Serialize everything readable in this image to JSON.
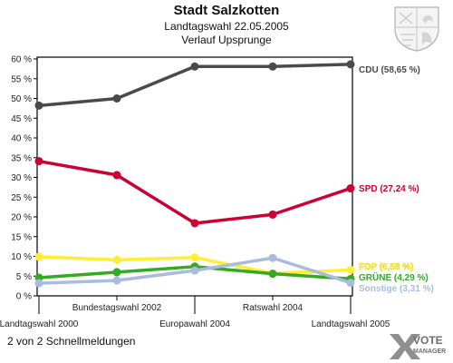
{
  "header": {
    "title": "Stadt Salzkotten",
    "subtitle": "Landtagswahl 22.05.2005",
    "subtitle2": "Verlauf Upsprunge"
  },
  "footer": {
    "text": "2 von 2 Schnellmeldungen"
  },
  "logo": {
    "line1": "VOTE",
    "line2": "MANAGER",
    "icon": "x-mark-icon"
  },
  "crest": {
    "icon": "coat-of-arms-icon"
  },
  "chart_data": {
    "type": "line",
    "x": [
      "Landtagswahl 2000",
      "Bundestagswahl 2002",
      "Europawahl 2004",
      "Ratswahl 2004",
      "Landtagswahl 2005"
    ],
    "ylim": [
      0,
      60
    ],
    "yticks": [
      0,
      5,
      10,
      15,
      20,
      25,
      30,
      35,
      40,
      45,
      50,
      55,
      60
    ],
    "y_tick_suffix": " %",
    "grid": false,
    "series": [
      {
        "name": "CDU",
        "label": "CDU (58,65 %)",
        "color": "#4a4a4a",
        "values": [
          48.2,
          50.0,
          58.1,
          58.1,
          58.65
        ]
      },
      {
        "name": "SPD",
        "label": "SPD (27,24 %)",
        "color": "#cc0033",
        "values": [
          34.1,
          30.6,
          18.4,
          20.6,
          27.24
        ]
      },
      {
        "name": "FDP",
        "label": "FDP (6,58 %)",
        "color": "#ffee33",
        "values": [
          9.9,
          9.1,
          9.7,
          5.7,
          6.58
        ]
      },
      {
        "name": "GRÜNE",
        "label": "GRÜNE (4,29 %)",
        "color": "#33aa22",
        "values": [
          4.6,
          6.0,
          7.4,
          5.6,
          4.29
        ]
      },
      {
        "name": "Sonstige",
        "label": "Sonstige (3,31 %)",
        "color": "#aabbdd",
        "values": [
          3.2,
          3.9,
          6.4,
          9.6,
          3.31
        ]
      }
    ]
  }
}
